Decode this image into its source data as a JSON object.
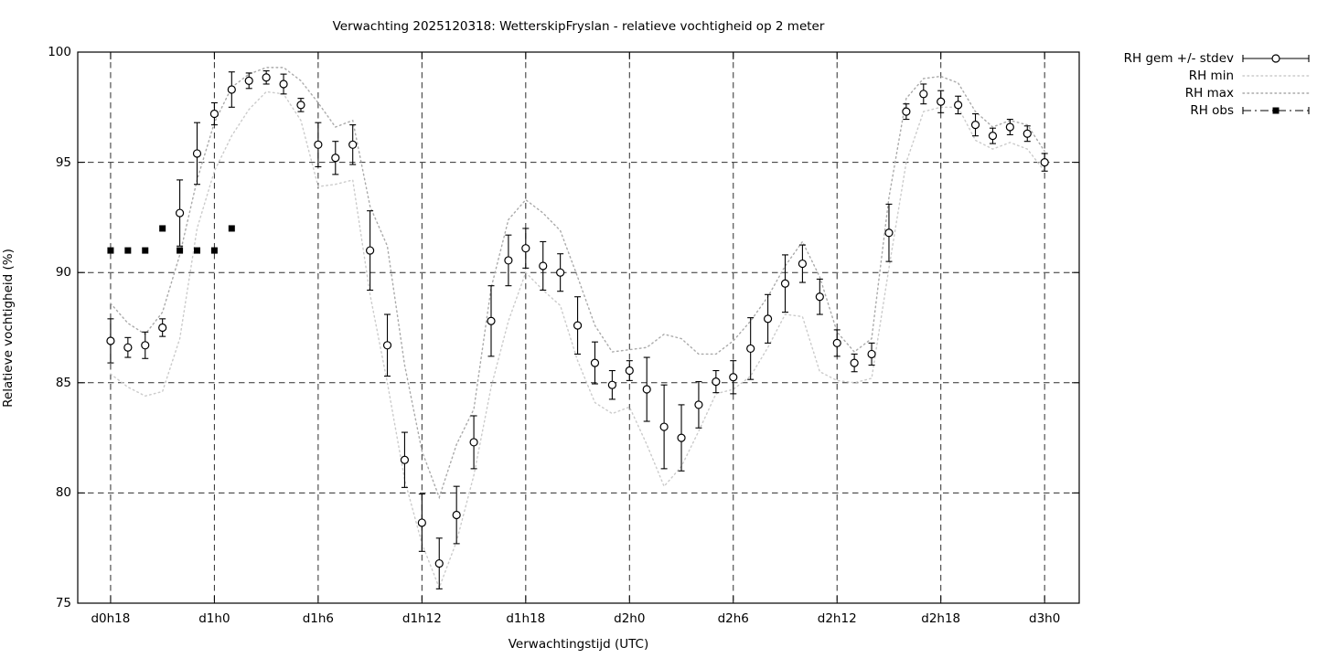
{
  "title": "Verwachting 2025120318: WetterskipFryslan - relatieve vochtigheid op 2 meter",
  "axes": {
    "xlabel": "Verwachtingstijd (UTC)",
    "ylabel": "Relatieve vochtigheid (%)",
    "x_tick_labels": [
      "d0h18",
      "d1h0",
      "d1h6",
      "d1h12",
      "d1h18",
      "d2h0",
      "d2h6",
      "d2h12",
      "d2h18",
      "d3h0"
    ],
    "x_tick_hours": [
      18,
      24,
      30,
      36,
      42,
      48,
      54,
      60,
      66,
      72
    ],
    "y_tick_labels": [
      "75",
      "80",
      "85",
      "90",
      "95",
      "100"
    ],
    "y_ticks": [
      75,
      80,
      85,
      90,
      95,
      100
    ],
    "grid": "dashed on both axes"
  },
  "legend": {
    "position": "outside top-right",
    "items": [
      {
        "label": "RH gem +/- stdev",
        "style": "errorbar-open-circle"
      },
      {
        "label": "RH min",
        "style": "dotted-light-gray"
      },
      {
        "label": "RH max",
        "style": "dotted-gray"
      },
      {
        "label": "RH obs",
        "style": "dashdot-filled-square"
      }
    ]
  },
  "colors": {
    "foreground": "#000000",
    "background": "#ffffff",
    "grid": "#2e2e2e",
    "rh_min_line": "#cbcbcb",
    "rh_max_line": "#aaaaaa",
    "marker_fill": "#ffffff"
  },
  "chart_data": {
    "type": "scatter",
    "title": "Verwachting 2025120318: WetterskipFryslan - relatieve vochtigheid op 2 meter",
    "xlabel": "Verwachtingstijd (UTC)",
    "ylabel": "Relatieve vochtigheid (%)",
    "xlim_hours": [
      16.1,
      74.0
    ],
    "ylim": [
      75,
      100
    ],
    "x_hours": [
      18,
      19,
      20,
      21,
      22,
      23,
      24,
      25,
      26,
      27,
      28,
      29,
      30,
      31,
      32,
      33,
      34,
      35,
      36,
      37,
      38,
      39,
      40,
      41,
      42,
      43,
      44,
      45,
      46,
      47,
      48,
      49,
      50,
      51,
      52,
      53,
      54,
      55,
      56,
      57,
      58,
      59,
      60,
      61,
      62,
      63,
      64,
      65,
      66,
      67,
      68,
      69,
      70,
      71,
      72
    ],
    "series": [
      {
        "name": "RH gem +/- stdev",
        "render": "points-with-errorbars",
        "marker": "open-circle",
        "values": [
          86.9,
          86.6,
          86.7,
          87.5,
          92.7,
          95.4,
          97.2,
          98.3,
          98.7,
          98.85,
          98.55,
          97.6,
          95.8,
          95.2,
          95.8,
          91.0,
          86.7,
          81.5,
          78.65,
          76.8,
          79.0,
          82.3,
          87.8,
          90.55,
          91.1,
          90.3,
          90.0,
          87.6,
          85.9,
          84.9,
          85.55,
          84.7,
          83.0,
          82.5,
          84.0,
          85.05,
          85.25,
          86.55,
          87.9,
          89.5,
          90.4,
          88.9,
          86.8,
          85.9,
          86.3,
          91.8,
          97.3,
          98.1,
          97.75,
          97.6,
          96.7,
          96.2,
          96.6,
          96.3,
          95.0
        ],
        "stdev": [
          1.0,
          0.45,
          0.6,
          0.4,
          1.5,
          1.4,
          0.5,
          0.8,
          0.35,
          0.3,
          0.45,
          0.3,
          1.0,
          0.75,
          0.9,
          1.8,
          1.4,
          1.25,
          1.3,
          1.15,
          1.3,
          1.2,
          1.6,
          1.15,
          0.9,
          1.1,
          0.85,
          1.3,
          0.95,
          0.65,
          0.45,
          1.45,
          1.9,
          1.5,
          1.05,
          0.5,
          0.75,
          1.4,
          1.1,
          1.3,
          0.85,
          0.8,
          0.6,
          0.4,
          0.5,
          1.3,
          0.35,
          0.45,
          0.5,
          0.4,
          0.5,
          0.35,
          0.35,
          0.35,
          0.4
        ]
      },
      {
        "name": "RH min",
        "render": "dotted-line",
        "values": [
          85.4,
          84.8,
          84.4,
          84.6,
          87.0,
          92.0,
          94.6,
          96.2,
          97.4,
          98.2,
          98.1,
          96.9,
          93.9,
          94.0,
          94.2,
          89.0,
          85.0,
          80.6,
          77.7,
          75.7,
          77.8,
          80.8,
          84.8,
          87.8,
          90.0,
          89.2,
          88.5,
          86.0,
          84.1,
          83.6,
          83.9,
          82.2,
          80.3,
          81.2,
          82.8,
          84.5,
          84.7,
          85.3,
          86.6,
          88.1,
          88.0,
          85.5,
          85.1,
          85.0,
          85.2,
          90.2,
          95.0,
          97.3,
          97.5,
          97.5,
          96.0,
          95.6,
          95.9,
          95.6,
          94.6
        ]
      },
      {
        "name": "RH max",
        "render": "dotted-line",
        "values": [
          88.6,
          87.7,
          87.2,
          88.2,
          90.8,
          94.2,
          96.8,
          98.4,
          99.0,
          99.3,
          99.3,
          98.7,
          97.7,
          96.6,
          96.9,
          93.0,
          91.2,
          85.8,
          81.9,
          79.8,
          82.2,
          83.8,
          89.3,
          92.4,
          93.3,
          92.7,
          91.9,
          89.8,
          87.6,
          86.4,
          86.5,
          86.6,
          87.2,
          87.0,
          86.3,
          86.3,
          86.9,
          87.8,
          88.9,
          90.3,
          91.4,
          89.8,
          87.3,
          86.4,
          87.0,
          93.4,
          97.9,
          98.8,
          98.9,
          98.6,
          97.3,
          96.6,
          96.9,
          96.7,
          95.5
        ]
      },
      {
        "name": "RH obs",
        "render": "points",
        "marker": "filled-square",
        "x_hours": [
          18,
          19,
          20,
          21,
          22,
          23,
          24,
          25
        ],
        "values": [
          91,
          91,
          91,
          92,
          91,
          91,
          91,
          92
        ]
      }
    ]
  }
}
